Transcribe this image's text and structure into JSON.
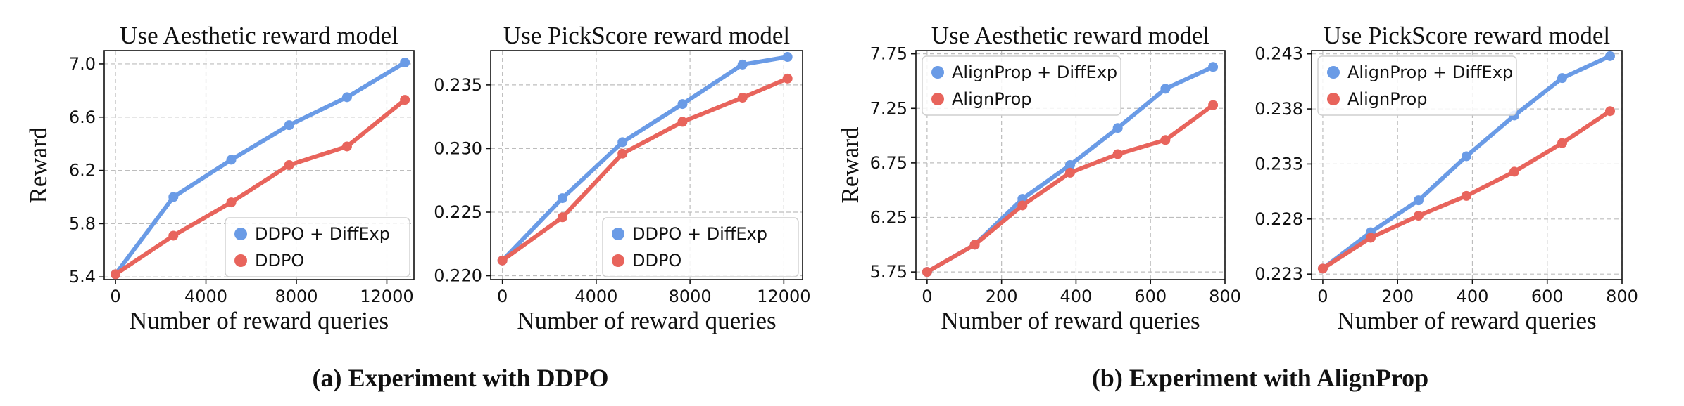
{
  "captions": {
    "a": "(a) Experiment with DDPO",
    "b": "(b) Experiment with AlignProp"
  },
  "colors": {
    "blue": "#6a9be6",
    "red": "#e8645c"
  },
  "chart_data": [
    {
      "type": "line",
      "title": "Use Aesthetic reward model",
      "xlabel": "Number of reward queries",
      "ylabel": "Reward",
      "xlim": [
        -500,
        13200
      ],
      "ylim": [
        5.38,
        7.1
      ],
      "xticks": [
        0,
        4000,
        8000,
        12000
      ],
      "xtick_labels": [
        "0",
        "4000",
        "8000",
        "12000"
      ],
      "yticks": [
        5.4,
        5.8,
        6.2,
        6.6,
        7.0
      ],
      "ytick_labels": [
        "5.4",
        "5.8",
        "6.2",
        "6.6",
        "7.0"
      ],
      "grid": true,
      "legend_position": "lower-right",
      "series": [
        {
          "name": "DDPO + DiffExp",
          "color": "#6a9be6",
          "x": [
            0,
            2560,
            5120,
            7680,
            10240,
            12800
          ],
          "y": [
            5.42,
            6.0,
            6.28,
            6.54,
            6.75,
            7.01
          ]
        },
        {
          "name": "DDPO",
          "color": "#e8645c",
          "x": [
            0,
            2560,
            5120,
            7680,
            10240,
            12800
          ],
          "y": [
            5.42,
            5.71,
            5.96,
            6.24,
            6.38,
            6.73
          ]
        }
      ]
    },
    {
      "type": "line",
      "title": "Use PickScore reward model",
      "xlabel": "Number of reward queries",
      "ylabel": "",
      "xlim": [
        -500,
        12800
      ],
      "ylim": [
        0.2197,
        0.2377
      ],
      "xticks": [
        0,
        4000,
        8000,
        12000
      ],
      "xtick_labels": [
        "0",
        "4000",
        "8000",
        "12000"
      ],
      "yticks": [
        0.22,
        0.225,
        0.23,
        0.235
      ],
      "ytick_labels": [
        "0.220",
        "0.225",
        "0.230",
        "0.235"
      ],
      "grid": true,
      "legend_position": "lower-right",
      "series": [
        {
          "name": "DDPO + DiffExp",
          "color": "#6a9be6",
          "x": [
            0,
            2560,
            5120,
            7680,
            10240,
            12160
          ],
          "y": [
            0.2212,
            0.2261,
            0.2305,
            0.2335,
            0.2366,
            0.2372
          ]
        },
        {
          "name": "DDPO",
          "color": "#e8645c",
          "x": [
            0,
            2560,
            5120,
            7680,
            10240,
            12160
          ],
          "y": [
            0.2212,
            0.2246,
            0.2296,
            0.2321,
            0.234,
            0.2355
          ]
        }
      ]
    },
    {
      "type": "line",
      "title": "Use Aesthetic reward model",
      "xlabel": "Number of reward queries",
      "ylabel": "Reward",
      "xlim": [
        -30,
        800
      ],
      "ylim": [
        5.68,
        7.78
      ],
      "xticks": [
        0,
        200,
        400,
        600,
        800
      ],
      "xtick_labels": [
        "0",
        "200",
        "400",
        "600",
        "800"
      ],
      "yticks": [
        5.75,
        6.25,
        6.75,
        7.25,
        7.75
      ],
      "ytick_labels": [
        "5.75",
        "6.25",
        "6.75",
        "7.25",
        "7.75"
      ],
      "grid": true,
      "legend_position": "upper-left",
      "series": [
        {
          "name": "AlignProp + DiffExp",
          "color": "#6a9be6",
          "x": [
            0,
            128,
            256,
            384,
            512,
            640,
            768
          ],
          "y": [
            5.75,
            6.0,
            6.42,
            6.73,
            7.07,
            7.43,
            7.63
          ]
        },
        {
          "name": "AlignProp",
          "color": "#e8645c",
          "x": [
            0,
            128,
            256,
            384,
            512,
            640,
            768
          ],
          "y": [
            5.75,
            6.0,
            6.36,
            6.66,
            6.83,
            6.96,
            7.28
          ]
        }
      ]
    },
    {
      "type": "line",
      "title": "Use PickScore reward model",
      "xlabel": "Number of reward queries",
      "ylabel": "",
      "xlim": [
        -30,
        800
      ],
      "ylim": [
        0.2225,
        0.2433
      ],
      "xticks": [
        0,
        200,
        400,
        600,
        800
      ],
      "xtick_labels": [
        "0",
        "200",
        "400",
        "600",
        "800"
      ],
      "yticks": [
        0.223,
        0.228,
        0.233,
        0.238,
        0.243
      ],
      "ytick_labels": [
        "0.223",
        "0.228",
        "0.233",
        "0.238",
        "0.243"
      ],
      "grid": true,
      "legend_position": "upper-left",
      "series": [
        {
          "name": "AlignProp + DiffExp",
          "color": "#6a9be6",
          "x": [
            0,
            128,
            256,
            384,
            512,
            640,
            768
          ],
          "y": [
            0.2235,
            0.2268,
            0.2297,
            0.2337,
            0.2374,
            0.2408,
            0.2428
          ]
        },
        {
          "name": "AlignProp",
          "color": "#e8645c",
          "x": [
            0,
            128,
            256,
            384,
            512,
            640,
            768
          ],
          "y": [
            0.2235,
            0.2263,
            0.2283,
            0.2301,
            0.2323,
            0.2349,
            0.2378
          ]
        }
      ]
    }
  ]
}
